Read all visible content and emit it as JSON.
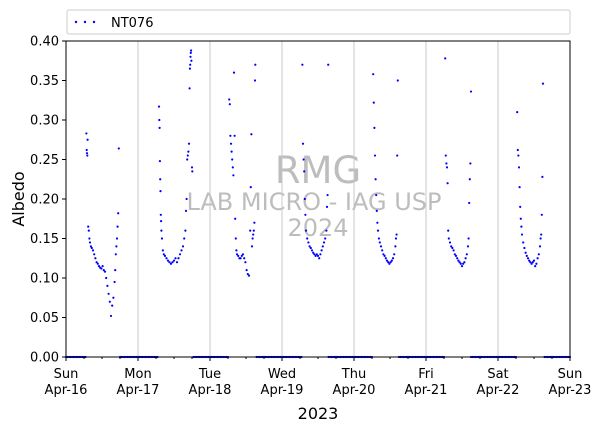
{
  "chart_data": {
    "type": "scatter",
    "title": "",
    "xlabel": "2023",
    "ylabel": "Albedo",
    "ylim": [
      0,
      0.4
    ],
    "yticks": [
      "0.00",
      "0.05",
      "0.10",
      "0.15",
      "0.20",
      "0.25",
      "0.30",
      "0.35",
      "0.40"
    ],
    "xlim": [
      "2023-04-16 00:00",
      "2023-04-23 00:00"
    ],
    "xticks": [
      {
        "line1": "Sun",
        "line2": "Apr-16"
      },
      {
        "line1": "Mon",
        "line2": "Apr-17"
      },
      {
        "line1": "Tue",
        "line2": "Apr-18"
      },
      {
        "line1": "Wed",
        "line2": "Apr-19"
      },
      {
        "line1": "Thu",
        "line2": "Apr-20"
      },
      {
        "line1": "Fri",
        "line2": "Apr-21"
      },
      {
        "line1": "Sat",
        "line2": "Apr-22"
      },
      {
        "line1": "Sun",
        "line2": "Apr-23"
      }
    ],
    "grid": "vertical lines at day boundaries",
    "legend": {
      "position": "top, above plot",
      "entries": [
        "NT076"
      ]
    },
    "series": [
      {
        "name": "NT076",
        "color": "#0000ff",
        "marker": "dot",
        "night_value": 0.0,
        "points_hours_since_start_albedo": [
          [
            6.8,
            0.283
          ],
          [
            6.9,
            0.262
          ],
          [
            7.0,
            0.258
          ],
          [
            7.1,
            0.255
          ],
          [
            7.2,
            0.275
          ],
          [
            7.4,
            0.165
          ],
          [
            7.6,
            0.16
          ],
          [
            7.8,
            0.15
          ],
          [
            8.0,
            0.145
          ],
          [
            8.3,
            0.14
          ],
          [
            8.6,
            0.138
          ],
          [
            9.0,
            0.135
          ],
          [
            9.4,
            0.13
          ],
          [
            9.8,
            0.125
          ],
          [
            10.2,
            0.12
          ],
          [
            10.6,
            0.118
          ],
          [
            11.0,
            0.115
          ],
          [
            11.4,
            0.113
          ],
          [
            11.8,
            0.112
          ],
          [
            12.2,
            0.115
          ],
          [
            12.6,
            0.11
          ],
          [
            13.0,
            0.108
          ],
          [
            13.4,
            0.1
          ],
          [
            13.8,
            0.09
          ],
          [
            14.2,
            0.08
          ],
          [
            14.6,
            0.07
          ],
          [
            15.0,
            0.052
          ],
          [
            15.4,
            0.065
          ],
          [
            15.8,
            0.075
          ],
          [
            16.2,
            0.095
          ],
          [
            16.4,
            0.11
          ],
          [
            16.6,
            0.13
          ],
          [
            16.8,
            0.14
          ],
          [
            17.0,
            0.15
          ],
          [
            17.2,
            0.165
          ],
          [
            17.4,
            0.182
          ],
          [
            17.6,
            0.264
          ],
          [
            31.0,
            0.317
          ],
          [
            31.1,
            0.3
          ],
          [
            31.2,
            0.29
          ],
          [
            31.3,
            0.248
          ],
          [
            31.4,
            0.225
          ],
          [
            31.5,
            0.21
          ],
          [
            31.6,
            0.18
          ],
          [
            31.7,
            0.172
          ],
          [
            31.8,
            0.16
          ],
          [
            32.0,
            0.15
          ],
          [
            32.3,
            0.135
          ],
          [
            32.6,
            0.13
          ],
          [
            33.0,
            0.128
          ],
          [
            33.5,
            0.125
          ],
          [
            34.0,
            0.122
          ],
          [
            34.5,
            0.12
          ],
          [
            35.0,
            0.118
          ],
          [
            35.5,
            0.12
          ],
          [
            36.0,
            0.122
          ],
          [
            36.5,
            0.125
          ],
          [
            37.0,
            0.12
          ],
          [
            37.5,
            0.125
          ],
          [
            38.0,
            0.13
          ],
          [
            38.5,
            0.135
          ],
          [
            39.0,
            0.14
          ],
          [
            39.4,
            0.15
          ],
          [
            39.8,
            0.16
          ],
          [
            40.0,
            0.185
          ],
          [
            40.2,
            0.2
          ],
          [
            40.4,
            0.25
          ],
          [
            40.6,
            0.255
          ],
          [
            40.8,
            0.26
          ],
          [
            41.0,
            0.27
          ],
          [
            41.2,
            0.34
          ],
          [
            41.3,
            0.365
          ],
          [
            41.4,
            0.37
          ],
          [
            41.5,
            0.38
          ],
          [
            41.6,
            0.385
          ],
          [
            41.7,
            0.388
          ],
          [
            41.8,
            0.375
          ],
          [
            42.0,
            0.24
          ],
          [
            42.1,
            0.235
          ],
          [
            54.4,
            0.326
          ],
          [
            54.6,
            0.32
          ],
          [
            54.8,
            0.28
          ],
          [
            55.0,
            0.27
          ],
          [
            55.2,
            0.26
          ],
          [
            55.4,
            0.25
          ],
          [
            55.6,
            0.24
          ],
          [
            55.8,
            0.23
          ],
          [
            56.0,
            0.36
          ],
          [
            56.2,
            0.28
          ],
          [
            56.4,
            0.175
          ],
          [
            56.6,
            0.15
          ],
          [
            56.8,
            0.135
          ],
          [
            57.0,
            0.13
          ],
          [
            57.4,
            0.128
          ],
          [
            57.8,
            0.125
          ],
          [
            58.2,
            0.125
          ],
          [
            58.6,
            0.128
          ],
          [
            59.0,
            0.13
          ],
          [
            59.4,
            0.125
          ],
          [
            59.8,
            0.12
          ],
          [
            60.2,
            0.11
          ],
          [
            60.6,
            0.105
          ],
          [
            61.0,
            0.103
          ],
          [
            61.4,
            0.16
          ],
          [
            61.6,
            0.215
          ],
          [
            61.8,
            0.282
          ],
          [
            62.0,
            0.14
          ],
          [
            62.2,
            0.15
          ],
          [
            62.4,
            0.155
          ],
          [
            62.6,
            0.16
          ],
          [
            62.8,
            0.17
          ],
          [
            63.0,
            0.35
          ],
          [
            63.1,
            0.37
          ],
          [
            78.8,
            0.37
          ],
          [
            79.0,
            0.27
          ],
          [
            79.2,
            0.25
          ],
          [
            79.4,
            0.235
          ],
          [
            79.6,
            0.2
          ],
          [
            79.8,
            0.18
          ],
          [
            80.0,
            0.16
          ],
          [
            80.4,
            0.15
          ],
          [
            80.8,
            0.145
          ],
          [
            81.2,
            0.14
          ],
          [
            81.6,
            0.138
          ],
          [
            82.0,
            0.135
          ],
          [
            82.4,
            0.132
          ],
          [
            82.8,
            0.13
          ],
          [
            83.2,
            0.128
          ],
          [
            83.6,
            0.13
          ],
          [
            84.0,
            0.128
          ],
          [
            84.4,
            0.125
          ],
          [
            84.8,
            0.13
          ],
          [
            85.2,
            0.135
          ],
          [
            85.6,
            0.14
          ],
          [
            86.0,
            0.145
          ],
          [
            86.4,
            0.15
          ],
          [
            86.8,
            0.16
          ],
          [
            87.0,
            0.19
          ],
          [
            87.2,
            0.205
          ],
          [
            87.4,
            0.37
          ],
          [
            102.4,
            0.358
          ],
          [
            102.6,
            0.322
          ],
          [
            102.8,
            0.29
          ],
          [
            103.0,
            0.255
          ],
          [
            103.2,
            0.225
          ],
          [
            103.4,
            0.205
          ],
          [
            103.6,
            0.185
          ],
          [
            103.8,
            0.17
          ],
          [
            104.0,
            0.16
          ],
          [
            104.3,
            0.15
          ],
          [
            104.6,
            0.145
          ],
          [
            105.0,
            0.14
          ],
          [
            105.4,
            0.135
          ],
          [
            105.8,
            0.13
          ],
          [
            106.2,
            0.128
          ],
          [
            106.6,
            0.125
          ],
          [
            107.0,
            0.122
          ],
          [
            107.4,
            0.12
          ],
          [
            107.8,
            0.118
          ],
          [
            108.2,
            0.12
          ],
          [
            108.6,
            0.122
          ],
          [
            109.0,
            0.125
          ],
          [
            109.4,
            0.13
          ],
          [
            109.8,
            0.14
          ],
          [
            110.0,
            0.15
          ],
          [
            110.2,
            0.155
          ],
          [
            110.4,
            0.255
          ],
          [
            110.6,
            0.35
          ],
          [
            126.4,
            0.378
          ],
          [
            126.6,
            0.255
          ],
          [
            126.8,
            0.245
          ],
          [
            127.0,
            0.24
          ],
          [
            127.2,
            0.22
          ],
          [
            127.4,
            0.16
          ],
          [
            127.6,
            0.15
          ],
          [
            128.0,
            0.145
          ],
          [
            128.4,
            0.14
          ],
          [
            128.8,
            0.138
          ],
          [
            129.2,
            0.135
          ],
          [
            129.6,
            0.13
          ],
          [
            130.0,
            0.128
          ],
          [
            130.4,
            0.125
          ],
          [
            130.8,
            0.122
          ],
          [
            131.2,
            0.12
          ],
          [
            131.6,
            0.118
          ],
          [
            132.0,
            0.115
          ],
          [
            132.4,
            0.118
          ],
          [
            132.8,
            0.12
          ],
          [
            133.2,
            0.125
          ],
          [
            133.6,
            0.13
          ],
          [
            134.0,
            0.14
          ],
          [
            134.2,
            0.15
          ],
          [
            134.4,
            0.195
          ],
          [
            134.6,
            0.225
          ],
          [
            134.8,
            0.245
          ],
          [
            135.0,
            0.336
          ],
          [
            150.4,
            0.31
          ],
          [
            150.6,
            0.262
          ],
          [
            150.8,
            0.255
          ],
          [
            151.0,
            0.24
          ],
          [
            151.2,
            0.215
          ],
          [
            151.4,
            0.19
          ],
          [
            151.6,
            0.175
          ],
          [
            151.8,
            0.165
          ],
          [
            152.0,
            0.155
          ],
          [
            152.4,
            0.145
          ],
          [
            152.8,
            0.138
          ],
          [
            153.2,
            0.132
          ],
          [
            153.6,
            0.128
          ],
          [
            154.0,
            0.125
          ],
          [
            154.4,
            0.122
          ],
          [
            154.8,
            0.12
          ],
          [
            155.2,
            0.118
          ],
          [
            155.6,
            0.12
          ],
          [
            156.0,
            0.122
          ],
          [
            156.4,
            0.115
          ],
          [
            156.8,
            0.118
          ],
          [
            157.2,
            0.125
          ],
          [
            157.6,
            0.13
          ],
          [
            158.0,
            0.14
          ],
          [
            158.2,
            0.15
          ],
          [
            158.4,
            0.155
          ],
          [
            158.6,
            0.18
          ],
          [
            158.8,
            0.228
          ],
          [
            159.0,
            0.346
          ]
        ],
        "daytime_windows_hours": [
          [
            6.5,
            18
          ],
          [
            30.5,
            42.5
          ],
          [
            54,
            63.5
          ],
          [
            78.5,
            87.5
          ],
          [
            102,
            111
          ],
          [
            126,
            135
          ],
          [
            150,
            159.5
          ]
        ]
      }
    ]
  },
  "watermark": {
    "line1": "RMG",
    "line2": "LAB MICRO - IAG USP",
    "line3": "2024"
  }
}
